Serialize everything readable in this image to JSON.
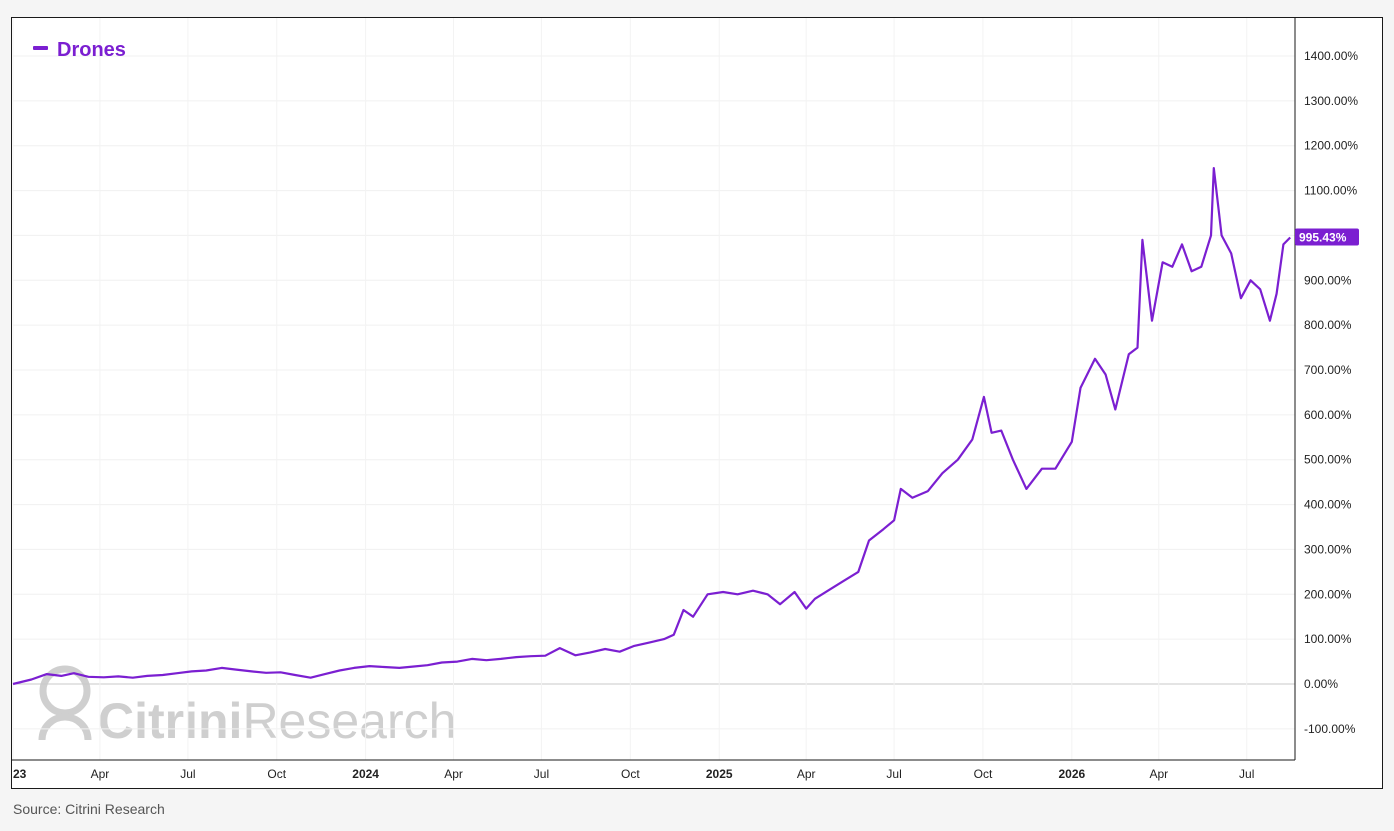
{
  "chart_data": {
    "type": "line",
    "title": "",
    "xlabel": "",
    "ylabel": "",
    "y_unit": "%",
    "ylim": [
      -150,
      1550
    ],
    "y_ticks": [
      -100,
      0,
      100,
      200,
      300,
      400,
      500,
      600,
      700,
      800,
      900,
      1000,
      1100,
      1200,
      1300,
      1400
    ],
    "y_tick_labels": [
      "-100.00%",
      "0.00%",
      "100.00%",
      "200.00%",
      "300.00%",
      "400.00%",
      "500.00%",
      "600.00%",
      "700.00%",
      "800.00%",
      "900.00%",
      "1000.00%",
      "1100.00%",
      "1200.00%",
      "1300.00%",
      "1400.00%"
    ],
    "xlim": [
      "2023-01-01",
      "2026-08-20"
    ],
    "x_ticks": [
      {
        "date": "2023-01-01",
        "label": "23",
        "bold": true
      },
      {
        "date": "2023-04-01",
        "label": "Apr",
        "bold": false
      },
      {
        "date": "2023-07-01",
        "label": "Jul",
        "bold": false
      },
      {
        "date": "2023-10-01",
        "label": "Oct",
        "bold": false
      },
      {
        "date": "2024-01-01",
        "label": "2024",
        "bold": true
      },
      {
        "date": "2024-04-01",
        "label": "Apr",
        "bold": false
      },
      {
        "date": "2024-07-01",
        "label": "Jul",
        "bold": false
      },
      {
        "date": "2024-10-01",
        "label": "Oct",
        "bold": false
      },
      {
        "date": "2025-01-01",
        "label": "2025",
        "bold": true
      },
      {
        "date": "2025-04-01",
        "label": "Apr",
        "bold": false
      },
      {
        "date": "2025-07-01",
        "label": "Jul",
        "bold": false
      },
      {
        "date": "2025-10-01",
        "label": "Oct",
        "bold": false
      },
      {
        "date": "2026-01-01",
        "label": "2026",
        "bold": true
      },
      {
        "date": "2026-04-01",
        "label": "Apr",
        "bold": false
      },
      {
        "date": "2026-07-01",
        "label": "Jul",
        "bold": false
      }
    ],
    "grid": true,
    "legend_position": "top-left",
    "last_value_label": "995.43%",
    "series": [
      {
        "name": "Drones",
        "color": "#7b1fd1",
        "points": [
          [
            "2023-01-01",
            0
          ],
          [
            "2023-01-20",
            10
          ],
          [
            "2023-02-05",
            22
          ],
          [
            "2023-02-20",
            18
          ],
          [
            "2023-03-05",
            24
          ],
          [
            "2023-03-20",
            16
          ],
          [
            "2023-04-05",
            15
          ],
          [
            "2023-04-20",
            17
          ],
          [
            "2023-05-05",
            14
          ],
          [
            "2023-05-20",
            18
          ],
          [
            "2023-06-05",
            20
          ],
          [
            "2023-06-20",
            24
          ],
          [
            "2023-07-05",
            28
          ],
          [
            "2023-07-20",
            30
          ],
          [
            "2023-08-05",
            36
          ],
          [
            "2023-08-20",
            32
          ],
          [
            "2023-09-05",
            28
          ],
          [
            "2023-09-20",
            25
          ],
          [
            "2023-10-05",
            26
          ],
          [
            "2023-10-20",
            20
          ],
          [
            "2023-11-05",
            14
          ],
          [
            "2023-11-20",
            22
          ],
          [
            "2023-12-05",
            30
          ],
          [
            "2023-12-20",
            36
          ],
          [
            "2024-01-05",
            40
          ],
          [
            "2024-01-20",
            38
          ],
          [
            "2024-02-05",
            36
          ],
          [
            "2024-02-20",
            39
          ],
          [
            "2024-03-05",
            42
          ],
          [
            "2024-03-20",
            48
          ],
          [
            "2024-04-05",
            50
          ],
          [
            "2024-04-20",
            56
          ],
          [
            "2024-05-05",
            53
          ],
          [
            "2024-05-20",
            56
          ],
          [
            "2024-06-05",
            60
          ],
          [
            "2024-06-20",
            62
          ],
          [
            "2024-07-05",
            63
          ],
          [
            "2024-07-20",
            80
          ],
          [
            "2024-08-05",
            64
          ],
          [
            "2024-08-20",
            70
          ],
          [
            "2024-09-05",
            78
          ],
          [
            "2024-09-20",
            72
          ],
          [
            "2024-10-05",
            85
          ],
          [
            "2024-10-20",
            92
          ],
          [
            "2024-11-05",
            100
          ],
          [
            "2024-11-15",
            110
          ],
          [
            "2024-11-25",
            165
          ],
          [
            "2024-12-05",
            150
          ],
          [
            "2024-12-20",
            200
          ],
          [
            "2025-01-05",
            205
          ],
          [
            "2025-01-20",
            200
          ],
          [
            "2025-02-05",
            208
          ],
          [
            "2025-02-20",
            200
          ],
          [
            "2025-03-05",
            178
          ],
          [
            "2025-03-20",
            205
          ],
          [
            "2025-04-01",
            168
          ],
          [
            "2025-04-10",
            190
          ],
          [
            "2025-04-25",
            210
          ],
          [
            "2025-05-10",
            230
          ],
          [
            "2025-05-25",
            250
          ],
          [
            "2025-06-05",
            320
          ],
          [
            "2025-06-20",
            345
          ],
          [
            "2025-07-01",
            365
          ],
          [
            "2025-07-08",
            435
          ],
          [
            "2025-07-20",
            415
          ],
          [
            "2025-08-05",
            430
          ],
          [
            "2025-08-20",
            470
          ],
          [
            "2025-09-05",
            500
          ],
          [
            "2025-09-20",
            545
          ],
          [
            "2025-10-02",
            640
          ],
          [
            "2025-10-10",
            560
          ],
          [
            "2025-10-20",
            565
          ],
          [
            "2025-11-01",
            500
          ],
          [
            "2025-11-15",
            435
          ],
          [
            "2025-12-01",
            480
          ],
          [
            "2025-12-15",
            480
          ],
          [
            "2026-01-01",
            540
          ],
          [
            "2026-01-10",
            660
          ],
          [
            "2026-01-25",
            725
          ],
          [
            "2026-02-05",
            690
          ],
          [
            "2026-02-15",
            612
          ],
          [
            "2026-03-01",
            735
          ],
          [
            "2026-03-10",
            750
          ],
          [
            "2026-03-15",
            990
          ],
          [
            "2026-03-25",
            810
          ],
          [
            "2026-04-05",
            940
          ],
          [
            "2026-04-15",
            930
          ],
          [
            "2026-04-25",
            980
          ],
          [
            "2026-05-05",
            920
          ],
          [
            "2026-05-15",
            930
          ],
          [
            "2026-05-25",
            1000
          ],
          [
            "2026-05-28",
            1150
          ],
          [
            "2026-06-05",
            1000
          ],
          [
            "2026-06-15",
            960
          ],
          [
            "2026-06-25",
            860
          ],
          [
            "2026-07-05",
            900
          ],
          [
            "2026-07-15",
            880
          ],
          [
            "2026-07-25",
            810
          ],
          [
            "2026-08-01",
            870
          ],
          [
            "2026-08-08",
            980
          ],
          [
            "2026-08-15",
            995.43
          ]
        ]
      }
    ]
  },
  "watermark": {
    "brand_part1": "Citrini",
    "brand_part2": "Research"
  },
  "source_note": "Source: Citrini Research"
}
